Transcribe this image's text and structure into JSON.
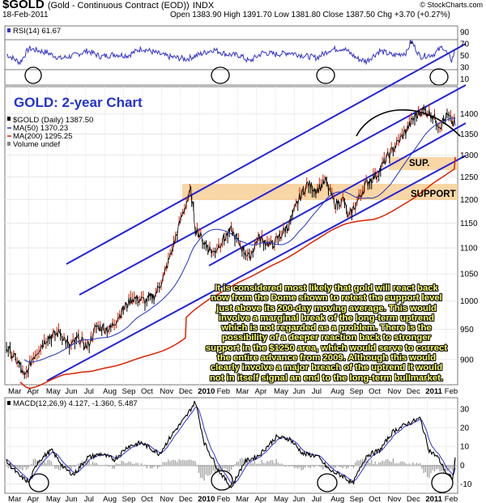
{
  "header": {
    "symbol": "$GOLD",
    "name": "(Gold - Continuous Contract (EOD))",
    "exchange": "INDX",
    "date": "18-Feb-2011",
    "ohlc": "Open 1383.90  High 1391.70  Low 1381.80  Close 1387.50  Chg +3.70 (+0.27%)",
    "credit": "© StockCharts.com"
  },
  "chart_label": "GOLD: 2-year Chart",
  "commentary": "It is considered most likely that gold will react back now from the Dome shown to retest the support level just above its 200-day moving average. This would involve a marginal break of the long-term uptrend which is not regarded as a problem. There is the possibility of a deeper reaction back to stronger support in the $1250 area, which would serve to correct the entire advance from 2009. Although this would clearly involve a major breach of the uptrend it would not in itself signal an end to the long-term bullmarket.",
  "annotations": {
    "sup": "SUP.",
    "support": "SUPPORT"
  },
  "colors": {
    "price": "#000000",
    "ma50": "#2233bb",
    "ma200": "#dd2200",
    "channel": "#2222dd",
    "support_band": "#f7cf95",
    "rsi": "#3333cc",
    "macd": "#000000",
    "signal": "#3333cc",
    "hist": "#999999",
    "commentary": "#ffff66"
  },
  "chart_data": [
    {
      "id": "rsi",
      "type": "line",
      "legend": "RSI(14) 61.67",
      "ylim": [
        0,
        100
      ],
      "y_ticks": [
        10,
        30,
        50,
        70,
        90
      ],
      "ref_lines": [
        30,
        70
      ],
      "n": 500,
      "keypoints": [
        [
          0,
          52
        ],
        [
          15,
          38
        ],
        [
          25,
          62
        ],
        [
          45,
          55
        ],
        [
          60,
          45
        ],
        [
          75,
          50
        ],
        [
          90,
          58
        ],
        [
          105,
          48
        ],
        [
          120,
          52
        ],
        [
          135,
          50
        ],
        [
          150,
          62
        ],
        [
          165,
          55
        ],
        [
          180,
          48
        ],
        [
          200,
          44
        ],
        [
          215,
          52
        ],
        [
          230,
          60
        ],
        [
          245,
          52
        ],
        [
          260,
          50
        ],
        [
          270,
          40
        ],
        [
          285,
          55
        ],
        [
          300,
          52
        ],
        [
          315,
          55
        ],
        [
          330,
          50
        ],
        [
          345,
          46
        ],
        [
          360,
          60
        ],
        [
          375,
          62
        ],
        [
          390,
          45
        ],
        [
          400,
          40
        ],
        [
          415,
          58
        ],
        [
          430,
          50
        ],
        [
          445,
          55
        ],
        [
          450,
          75
        ],
        [
          460,
          48
        ],
        [
          475,
          52
        ],
        [
          485,
          65
        ],
        [
          495,
          42
        ],
        [
          500,
          62
        ]
      ],
      "last": 61.67
    },
    {
      "id": "price",
      "type": "line",
      "legend": {
        "title": "$GOLD (Daily) 1387.50",
        "ma50": "MA(50) 1370.23",
        "ma200": "MA(200) 1295.25",
        "volume": "Volume undef"
      },
      "scale": "log",
      "ylim": [
        860,
        1470
      ],
      "y_ticks": [
        900,
        950,
        1000,
        1050,
        1100,
        1150,
        1200,
        1250,
        1300,
        1350,
        1400
      ],
      "n": 500,
      "keypoints": [
        [
          0,
          920
        ],
        [
          15,
          890
        ],
        [
          20,
          870
        ],
        [
          30,
          905
        ],
        [
          45,
          935
        ],
        [
          60,
          945
        ],
        [
          70,
          920
        ],
        [
          80,
          935
        ],
        [
          90,
          920
        ],
        [
          100,
          955
        ],
        [
          115,
          950
        ],
        [
          130,
          985
        ],
        [
          140,
          1005
        ],
        [
          155,
          1000
        ],
        [
          165,
          1010
        ],
        [
          175,
          1045
        ],
        [
          185,
          1100
        ],
        [
          195,
          1165
        ],
        [
          205,
          1220
        ],
        [
          210,
          1140
        ],
        [
          220,
          1110
        ],
        [
          230,
          1090
        ],
        [
          240,
          1115
        ],
        [
          250,
          1135
        ],
        [
          260,
          1105
        ],
        [
          270,
          1080
        ],
        [
          280,
          1120
        ],
        [
          295,
          1105
        ],
        [
          305,
          1125
        ],
        [
          315,
          1150
        ],
        [
          325,
          1200
        ],
        [
          335,
          1235
        ],
        [
          345,
          1220
        ],
        [
          355,
          1240
        ],
        [
          365,
          1190
        ],
        [
          375,
          1200
        ],
        [
          380,
          1160
        ],
        [
          390,
          1195
        ],
        [
          400,
          1235
        ],
        [
          412,
          1255
        ],
        [
          422,
          1290
        ],
        [
          432,
          1320
        ],
        [
          442,
          1350
        ],
        [
          452,
          1385
        ],
        [
          462,
          1410
        ],
        [
          472,
          1400
        ],
        [
          482,
          1370
        ],
        [
          490,
          1395
        ],
        [
          497,
          1375
        ],
        [
          500,
          1387.5
        ]
      ],
      "last": 1387.5
    },
    {
      "id": "macd",
      "type": "line",
      "legend": "MACD(12,26,9) 4.127, -1.360, 5.487",
      "ylim": [
        -15,
        36
      ],
      "y_ticks": [
        -10,
        0,
        10,
        20,
        30
      ],
      "n": 500,
      "macd_keypoints": [
        [
          0,
          2
        ],
        [
          15,
          -6
        ],
        [
          25,
          -9
        ],
        [
          35,
          2
        ],
        [
          50,
          8
        ],
        [
          65,
          -2
        ],
        [
          75,
          -5
        ],
        [
          90,
          4
        ],
        [
          105,
          6
        ],
        [
          120,
          3
        ],
        [
          135,
          10
        ],
        [
          150,
          12
        ],
        [
          170,
          6
        ],
        [
          185,
          17
        ],
        [
          200,
          26
        ],
        [
          210,
          34
        ],
        [
          220,
          12
        ],
        [
          235,
          -2
        ],
        [
          250,
          -12
        ],
        [
          265,
          2
        ],
        [
          280,
          5
        ],
        [
          300,
          15
        ],
        [
          315,
          14
        ],
        [
          330,
          6
        ],
        [
          345,
          5
        ],
        [
          360,
          -3
        ],
        [
          375,
          -6
        ],
        [
          385,
          -10
        ],
        [
          400,
          5
        ],
        [
          415,
          8
        ],
        [
          430,
          18
        ],
        [
          445,
          22
        ],
        [
          460,
          25
        ],
        [
          470,
          8
        ],
        [
          480,
          4
        ],
        [
          490,
          -5
        ],
        [
          496,
          -7
        ],
        [
          500,
          4.127
        ]
      ],
      "last": [
        4.127,
        -1.36,
        5.487
      ]
    }
  ],
  "x_axis": {
    "months": [
      "Mar",
      "Apr",
      "May",
      "Jun",
      "Jul",
      "Aug",
      "Sep",
      "Oct",
      "Nov",
      "Dec",
      "2010",
      "Feb",
      "Mar",
      "Apr",
      "May",
      "Jun",
      "Jul",
      "Aug",
      "Sep",
      "Oct",
      "Nov",
      "Dec",
      "2011",
      "Feb"
    ],
    "bold": [
      "2010",
      "2011"
    ]
  }
}
